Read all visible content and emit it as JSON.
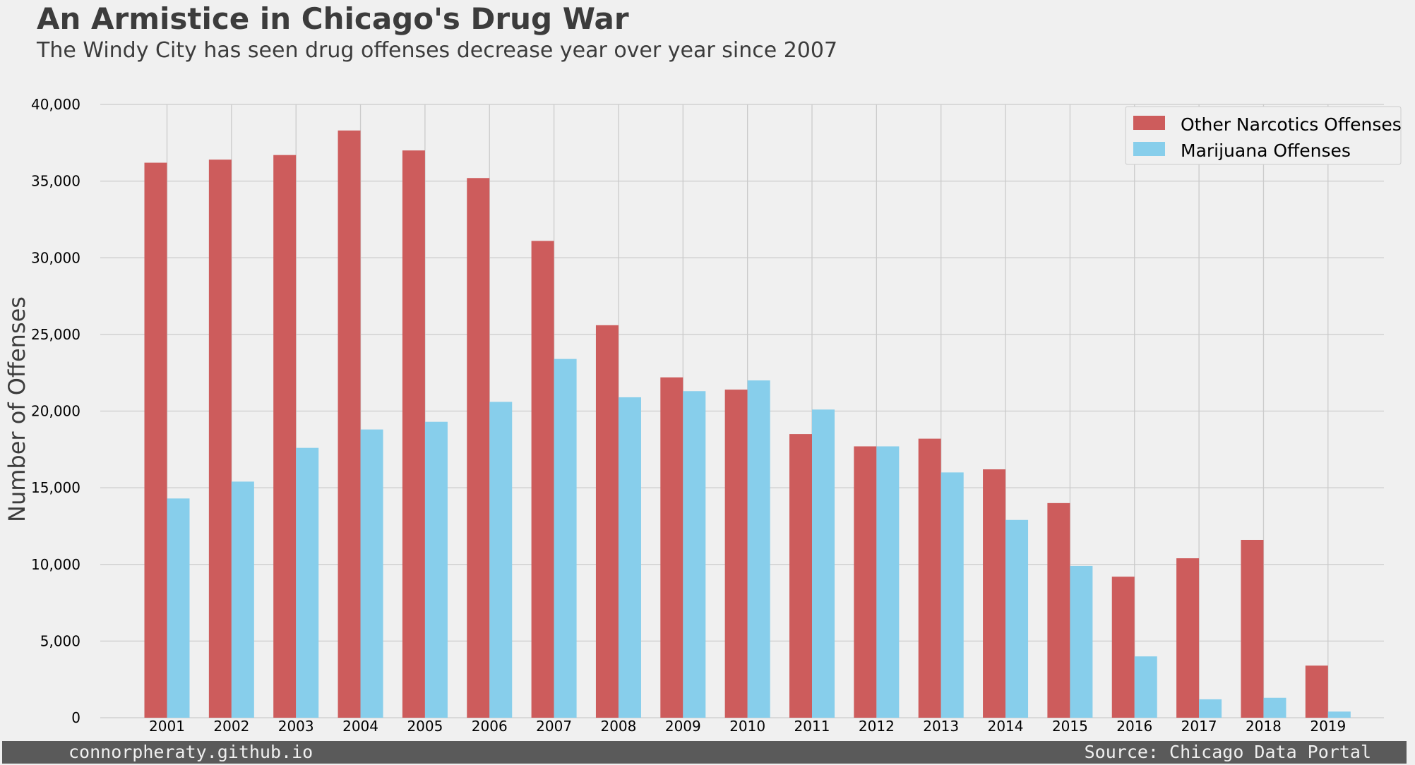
{
  "colors": {
    "narcotics": "#cd5c5c",
    "marijuana": "#87ceeb",
    "grid": "#cbcbcb",
    "text": "#3c3c3c",
    "footer_bg": "#5a5a5a",
    "footer_text": "#f0f0f0",
    "background": "#f0f0f0"
  },
  "footer": {
    "left": "connorpheraty.github.io",
    "right": "Source: Chicago Data Portal"
  },
  "chart_data": {
    "type": "bar",
    "title": "An Armistice in Chicago's Drug War",
    "subtitle": "The Windy City has seen drug offenses decrease year over year since 2007",
    "xlabel": "",
    "ylabel": "Number of Offenses",
    "ylim": [
      0,
      40000
    ],
    "yticks": [
      0,
      5000,
      10000,
      15000,
      20000,
      25000,
      30000,
      35000,
      40000
    ],
    "ytick_labels": [
      "0",
      "5,000",
      "10,000",
      "15,000",
      "20,000",
      "25,000",
      "30,000",
      "35,000",
      "40,000"
    ],
    "grid": true,
    "legend": "top-right",
    "categories": [
      "2001",
      "2002",
      "2003",
      "2004",
      "2005",
      "2006",
      "2007",
      "2008",
      "2009",
      "2010",
      "2011",
      "2012",
      "2013",
      "2014",
      "2015",
      "2016",
      "2017",
      "2018",
      "2019"
    ],
    "series": [
      {
        "name": "Other Narcotics Offenses",
        "key": "narcotics",
        "values": [
          36200,
          36400,
          36700,
          38300,
          37000,
          35200,
          31100,
          25600,
          22200,
          21400,
          18500,
          17700,
          18200,
          16200,
          14000,
          9200,
          10400,
          11600,
          3400
        ]
      },
      {
        "name": "Marijuana Offenses",
        "key": "marijuana",
        "values": [
          14300,
          15400,
          17600,
          18800,
          19300,
          20600,
          23400,
          20900,
          21300,
          22000,
          20100,
          17700,
          16000,
          12900,
          9900,
          4000,
          1200,
          1300,
          400
        ]
      }
    ]
  }
}
